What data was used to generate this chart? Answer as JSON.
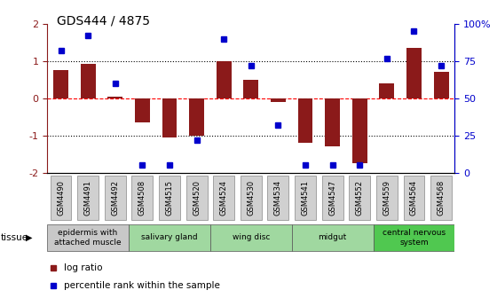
{
  "title": "GDS444 / 4875",
  "samples": [
    "GSM4490",
    "GSM4491",
    "GSM4492",
    "GSM4508",
    "GSM4515",
    "GSM4520",
    "GSM4524",
    "GSM4530",
    "GSM4534",
    "GSM4541",
    "GSM4547",
    "GSM4552",
    "GSM4559",
    "GSM4564",
    "GSM4568"
  ],
  "log_ratio": [
    0.75,
    0.92,
    0.05,
    -0.65,
    -1.05,
    -1.0,
    1.0,
    0.5,
    -0.1,
    -1.2,
    -1.3,
    -1.75,
    0.4,
    1.35,
    0.7
  ],
  "percentile": [
    82,
    92,
    60,
    5,
    5,
    22,
    90,
    72,
    32,
    5,
    5,
    5,
    77,
    95,
    72
  ],
  "bar_color": "#8b1a1a",
  "dot_color": "#0000cc",
  "ylim_left": [
    -2,
    2
  ],
  "ylim_right": [
    0,
    100
  ],
  "yticks_left": [
    -2,
    -1,
    0,
    1,
    2
  ],
  "yticks_right": [
    0,
    25,
    50,
    75,
    100
  ],
  "ytick_labels_right": [
    "0",
    "25",
    "50",
    "75",
    "100%"
  ],
  "tissue_groups": [
    {
      "label": "epidermis with\nattached muscle",
      "start": 0,
      "end": 2,
      "color": "#c8c8c8"
    },
    {
      "label": "salivary gland",
      "start": 3,
      "end": 5,
      "color": "#a0d8a0"
    },
    {
      "label": "wing disc",
      "start": 6,
      "end": 8,
      "color": "#a0d8a0"
    },
    {
      "label": "midgut",
      "start": 9,
      "end": 11,
      "color": "#a0d8a0"
    },
    {
      "label": "central nervous\nsystem",
      "start": 12,
      "end": 14,
      "color": "#50c850"
    }
  ],
  "legend_bar_label": "log ratio",
  "legend_dot_label": "percentile rank within the sample",
  "xtick_bg": "#d0d0d0"
}
